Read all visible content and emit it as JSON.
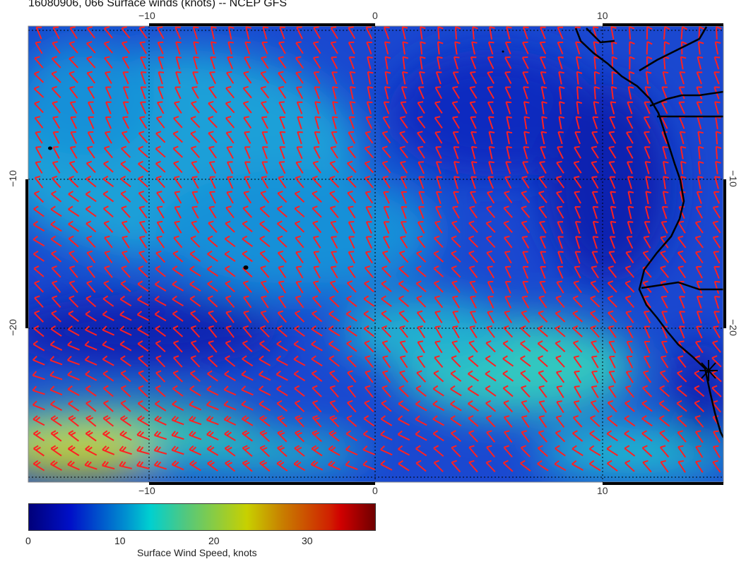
{
  "title": "16080906, 066 Surface winds (knots) -- NCEP GFS",
  "map": {
    "region": "South-east Atlantic / Southwest Africa coast",
    "lon_ticks": [
      "−10",
      "0",
      "10"
    ],
    "lat_ticks": [
      "−10",
      "−20"
    ],
    "barb_color": "#ff2020",
    "coastline_color": "#000000"
  },
  "colorbar": {
    "label": "Surface Wind Speed, knots",
    "ticks": [
      "0",
      "10",
      "20",
      "30"
    ],
    "range": [
      0,
      37
    ],
    "colormap": "jet"
  }
}
